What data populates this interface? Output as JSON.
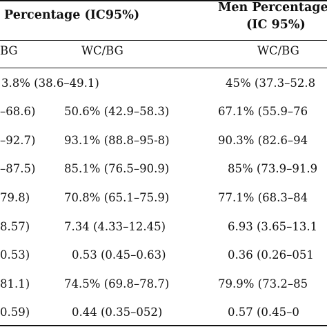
{
  "header": {
    "group1_title": "Percentage (IC95%)",
    "group2_title_line1": "Men Percentage",
    "group2_title_line2": "(IC 95%)"
  },
  "subheader": {
    "col1": "BG",
    "col2": "WC/BG",
    "col3": "WC/BG"
  },
  "rows": [
    {
      "c1": "3.8% (38.6–49.1)",
      "c2": "",
      "c3": "45% (37.3–52.8"
    },
    {
      "c1": "–68.6)",
      "c2": "50.6% (42.9–58.3)",
      "c3": "67.1% (55.9–76"
    },
    {
      "c1": "–92.7)",
      "c2": "93.1% (88.8–95-8)",
      "c3": "90.3% (82.6–94"
    },
    {
      "c1": "–87.5)",
      "c2": "85.1% (76.5–90.9)",
      "c3": "85% (73.9–91.9"
    },
    {
      "c1": "79.8)",
      "c2": "70.8% (65.1–75.9)",
      "c3": "77.1% (68.3–84"
    },
    {
      "c1": "8.57)",
      "c2": "7.34 (4.33–12.45)",
      "c3": "6.93 (3.65–13.1"
    },
    {
      "c1": "0.53)",
      "c2": "0.53 (0.45–0.63)",
      "c3": "0.36 (0.26–051"
    },
    {
      "c1": "81.1)",
      "c2": "74.5% (69.8–78.7)",
      "c3": "79.9% (73.2–85"
    },
    {
      "c1": "0.59)",
      "c2": "0.44 (0.35–052)",
      "c3": "0.57 (0.45–0"
    }
  ]
}
